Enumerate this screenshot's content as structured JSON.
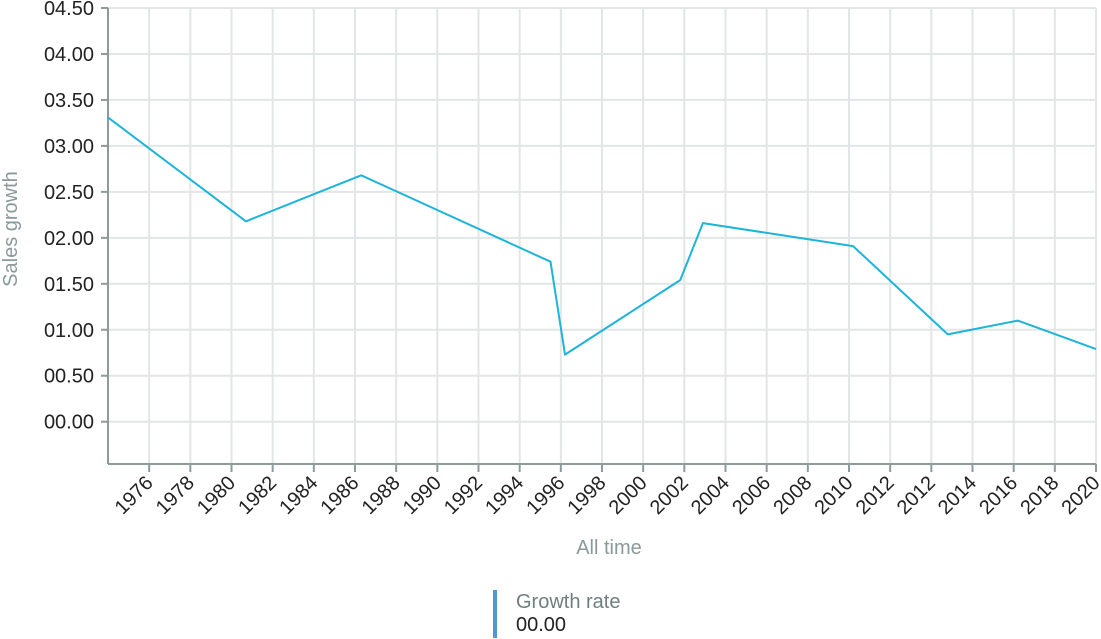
{
  "chart_data": {
    "type": "line",
    "xlabel": "All time",
    "ylabel": "Sales growth",
    "x_tick_labels": [
      "1976",
      "1978",
      "1980",
      "1982",
      "1984",
      "1986",
      "1988",
      "1990",
      "1992",
      "1994",
      "1996",
      "1998",
      "2000",
      "2002",
      "2004",
      "2006",
      "2008",
      "2010",
      "2012",
      "2012",
      "2014",
      "2016",
      "2018",
      "2020"
    ],
    "y_ticks": [
      "00.00",
      "00.50",
      "01.00",
      "01.50",
      "02.00",
      "02.50",
      "03.00",
      "03.50",
      "04.00",
      "04.50"
    ],
    "ylim": [
      -0.46,
      4.5
    ],
    "grid": true,
    "series": [
      {
        "name": "Growth rate",
        "color": "#1cb5d9",
        "points": [
          {
            "x": 1974.0,
            "y": 3.31
          },
          {
            "x": 1980.7,
            "y": 2.18
          },
          {
            "x": 1986.3,
            "y": 2.68
          },
          {
            "x": 1995.5,
            "y": 1.74
          },
          {
            "x": 1996.2,
            "y": 0.73
          },
          {
            "x": 2001.8,
            "y": 1.54
          },
          {
            "x": 2002.9,
            "y": 2.16
          },
          {
            "x": 2010.2,
            "y": 1.91
          },
          {
            "x": 2012.8,
            "y": 0.95
          },
          {
            "x": 2016.2,
            "y": 1.1
          },
          {
            "x": 2020.0,
            "y": 0.79
          }
        ]
      }
    ]
  },
  "legend": {
    "label": "Growth rate",
    "value": "00.00",
    "color": "#4a9ad8"
  }
}
